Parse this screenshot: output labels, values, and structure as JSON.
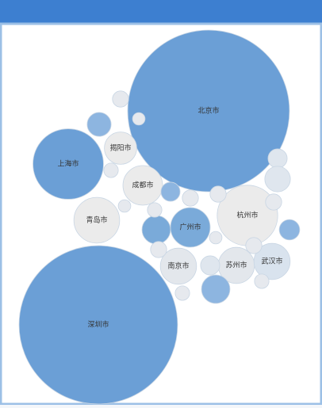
{
  "chart_data": {
    "type": "bubble",
    "categories": [
      "北京市",
      "深圳市",
      "上海市",
      "杭州市",
      "青岛市",
      "成都市",
      "揭阳市",
      "广州市",
      "南京市",
      "苏州市",
      "武汉市",
      null,
      null,
      null,
      null,
      null,
      null,
      null,
      null,
      null,
      null,
      null,
      null,
      null,
      null,
      null,
      null,
      null,
      null,
      null,
      null,
      null
    ],
    "values": [
      100,
      96,
      19,
      14,
      8,
      6,
      4,
      6,
      5,
      5,
      5,
      2.2,
      1,
      0.6,
      0.8,
      1.4,
      2.5,
      1,
      1.6,
      3.1,
      1.4,
      1,
      0.8,
      0.6,
      1.4,
      3.1,
      1,
      0.8,
      1,
      0.8,
      0.6,
      1
    ],
    "colors": [
      "#6b9fd6",
      "#6b9fd6",
      "#6b9fd6",
      "#ebebeb",
      "#ebebeb",
      "#ebebeb",
      "#ebebeb",
      "#7aaad9",
      "#e3e7ec",
      "#e3e7ec",
      "#d9e3ee",
      "#8db5e0",
      "#e6e9ee",
      "#e6e9ee",
      "#e6e9ee",
      "#dfe6ee",
      "#dfe6ee",
      "#e6e9ee",
      "#8db5e0",
      "#7aaad9",
      "#8db5e0",
      "#e6e9ee",
      "#e6e9ee",
      "#e6e9ee",
      "#dfe6ee",
      "#8db5e0",
      "#e6e9ee",
      "#e6e9ee",
      "#e6e9ee",
      "#e6e9ee",
      "#e6e9ee",
      "#e6e9ee"
    ]
  }
}
